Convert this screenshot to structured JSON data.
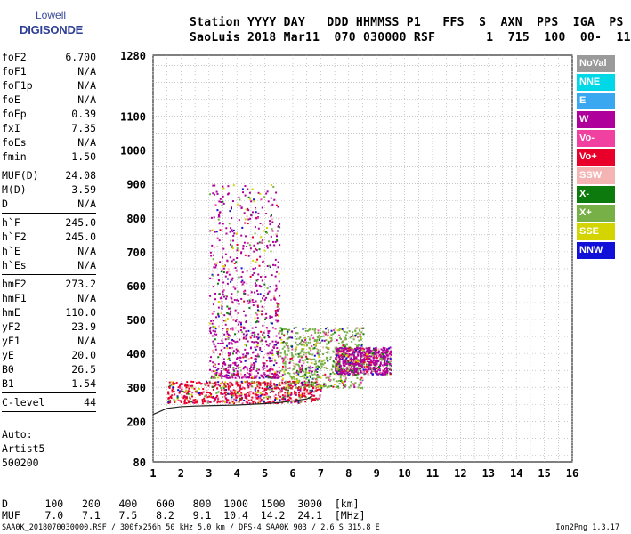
{
  "logo": {
    "brand": "Lowell",
    "product": "DIGISONDE"
  },
  "header": {
    "line1": "Station YYYY DAY   DDD HHMMSS P1   FFS  S  AXN  PPS  IGA  PS",
    "line2": "SaoLuis 2018 Mar11  070 030000 RSF       1  715  100  00-  11"
  },
  "params": [
    [
      {
        "k": "foF2",
        "v": "6.700"
      },
      {
        "k": "foF1",
        "v": "N/A"
      },
      {
        "k": "foF1p",
        "v": "N/A"
      },
      {
        "k": "foE",
        "v": "N/A"
      },
      {
        "k": "foEp",
        "v": "0.39"
      },
      {
        "k": "fxI",
        "v": "7.35"
      },
      {
        "k": "foEs",
        "v": "N/A"
      },
      {
        "k": "fmin",
        "v": "1.50"
      }
    ],
    [
      {
        "k": "MUF(D)",
        "v": "24.08"
      },
      {
        "k": "M(D)",
        "v": "3.59"
      },
      {
        "k": "D",
        "v": "N/A"
      }
    ],
    [
      {
        "k": "h`F",
        "v": "245.0"
      },
      {
        "k": "h`F2",
        "v": "245.0"
      },
      {
        "k": "h`E",
        "v": "N/A"
      },
      {
        "k": "h`Es",
        "v": "N/A"
      }
    ],
    [
      {
        "k": "hmF2",
        "v": "273.2"
      },
      {
        "k": "hmF1",
        "v": "N/A"
      },
      {
        "k": "hmE",
        "v": "110.0"
      },
      {
        "k": "yF2",
        "v": "23.9"
      },
      {
        "k": "yF1",
        "v": "N/A"
      },
      {
        "k": "yE",
        "v": "20.0"
      },
      {
        "k": "B0",
        "v": "26.5"
      },
      {
        "k": "B1",
        "v": "1.54"
      }
    ],
    [
      {
        "k": "C-level",
        "v": "44"
      }
    ]
  ],
  "auto": {
    "line1": "Auto:",
    "line2": "Artist5",
    "line3": "500200"
  },
  "bottom": {
    "d_line": "D      100   200   400   600   800  1000  1500  3000  [km]",
    "muf_line": "MUF    7.0   7.1   7.5   8.2   9.1  10.4  14.2  24.1  [MHz]",
    "footer_left": "SAA0K_2018070030000.RSF / 300fx256h 50 kHz 5.0 km / DPS-4 SAA0K 903 / 2.6 S 315.8 E",
    "footer_right": "Ion2Png 1.3.17"
  },
  "legend": [
    {
      "label": "NoVal",
      "color": "#9a9a9a"
    },
    {
      "label": "NNE",
      "color": "#00d8e8"
    },
    {
      "label": "E",
      "color": "#3aa8f0"
    },
    {
      "label": "W",
      "color": "#b0009c"
    },
    {
      "label": "Vo-",
      "color": "#f040a0"
    },
    {
      "label": "Vo+",
      "color": "#e8002a"
    },
    {
      "label": "SSW",
      "color": "#f5b4b4"
    },
    {
      "label": "X-",
      "color": "#0c7a0c"
    },
    {
      "label": "X+",
      "color": "#78b048"
    },
    {
      "label": "SSE",
      "color": "#d4d400"
    },
    {
      "label": "NNW",
      "color": "#1010d8"
    }
  ],
  "chart_data": {
    "type": "scatter",
    "title": "",
    "xlabel": "",
    "ylabel": "",
    "xlim": [
      1,
      16
    ],
    "ylim": [
      80,
      1280
    ],
    "x_ticks": [
      1,
      2,
      3,
      4,
      5,
      6,
      7,
      8,
      9,
      10,
      11,
      12,
      13,
      14,
      15,
      16
    ],
    "y_ticks": [
      80,
      200,
      300,
      400,
      500,
      600,
      700,
      800,
      900,
      1000,
      1100,
      1280
    ],
    "grid": true,
    "legend_position": "right",
    "ionogram_trace": {
      "freq_mhz": [
        1.0,
        1.5,
        2.0,
        2.5,
        3.0,
        3.5,
        4.0,
        4.5,
        5.0,
        5.5,
        6.0,
        6.5,
        6.7
      ],
      "height_km": [
        220,
        238,
        243,
        245,
        246,
        247,
        248,
        250,
        252,
        255,
        260,
        266,
        273
      ]
    },
    "echo_regions": [
      {
        "label": "Vo+",
        "freq_range": [
          1.5,
          7.0
        ],
        "height_range": [
          255,
          320
        ]
      },
      {
        "label": "W",
        "freq_range": [
          3.0,
          5.5
        ],
        "height_range": [
          330,
          900
        ]
      },
      {
        "label": "X+",
        "freq_range": [
          5.5,
          8.5
        ],
        "height_range": [
          300,
          480
        ]
      },
      {
        "label": "W",
        "freq_range": [
          7.5,
          9.5
        ],
        "height_range": [
          340,
          420
        ]
      }
    ]
  }
}
